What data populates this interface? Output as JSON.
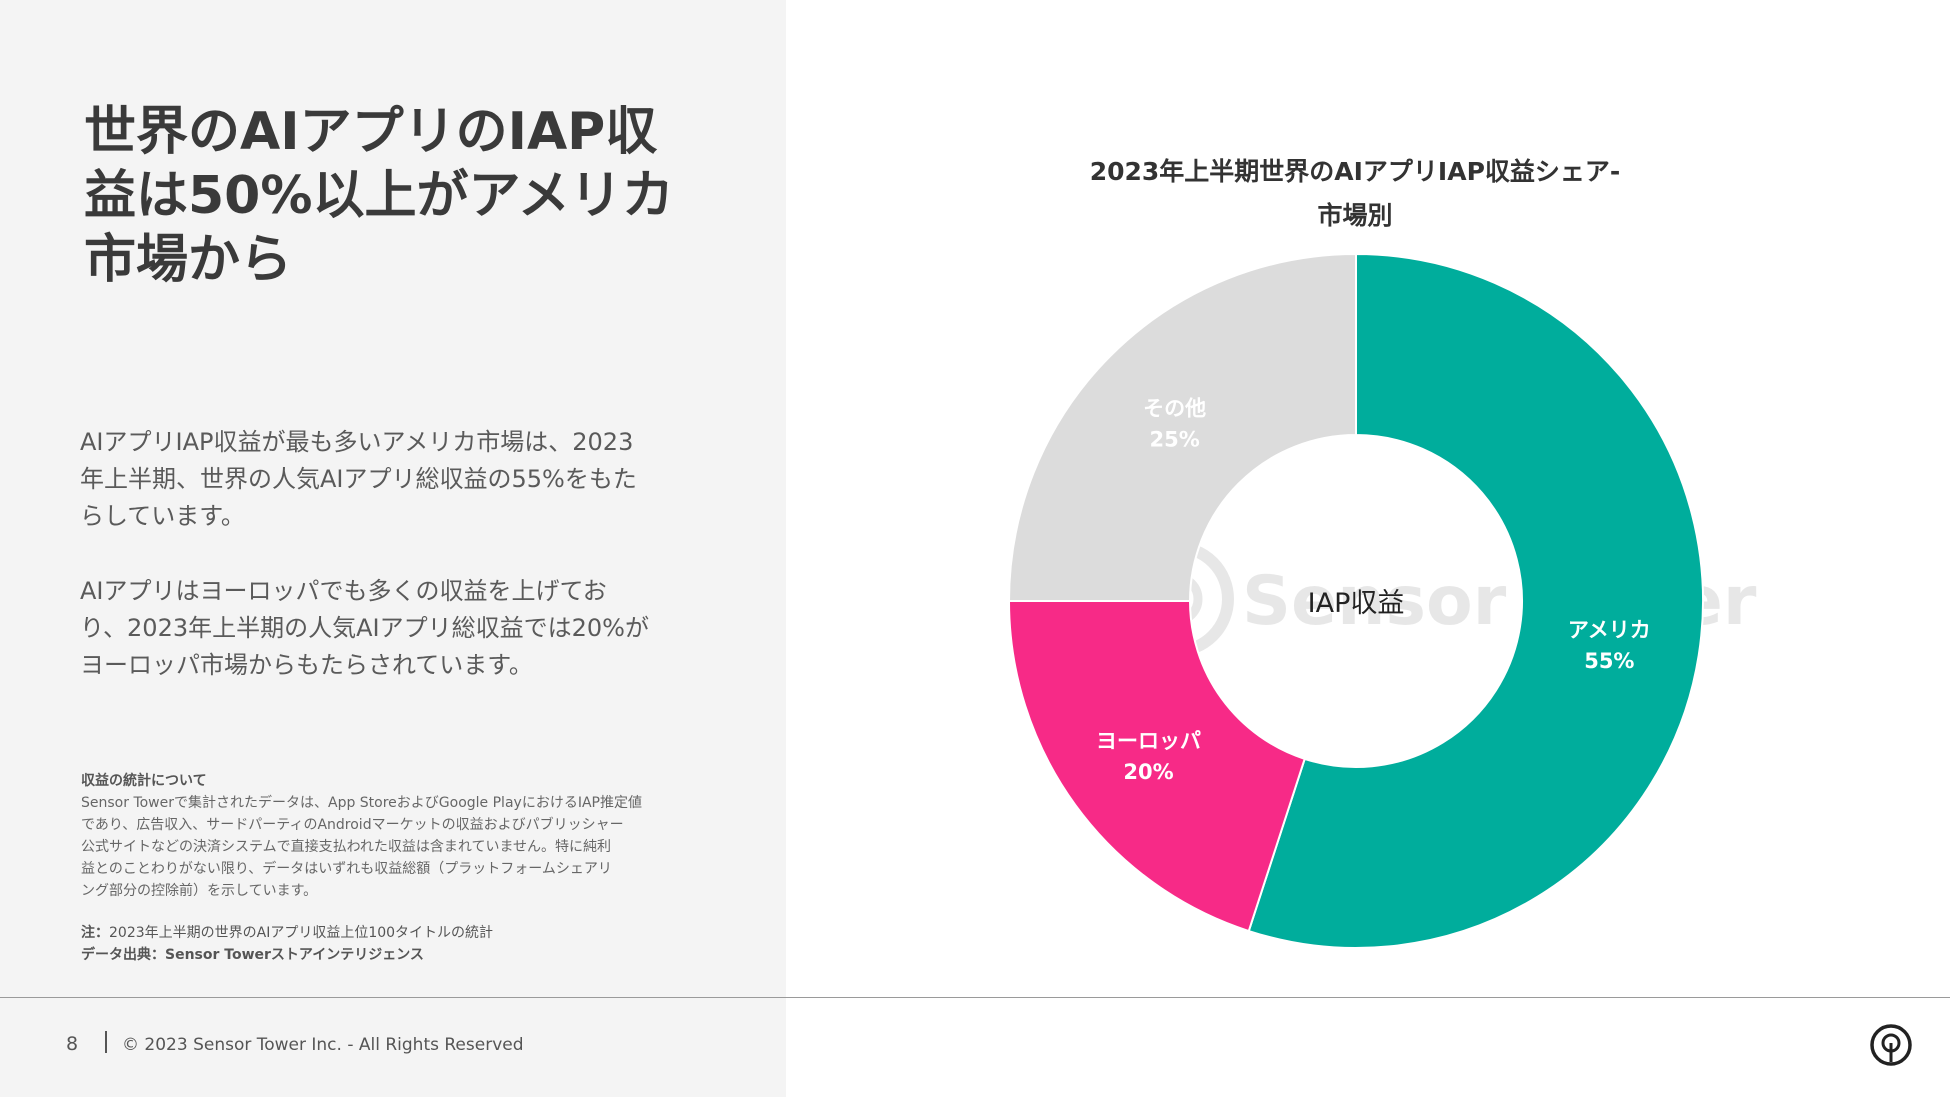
{
  "headline": [
    "世界のAIアプリのIAP収",
    "益は50%以上がアメリカ",
    "市場から"
  ],
  "body": {
    "para1": [
      "AIアプリIAP収益が最も多いアメリカ市場は、2023",
      "年上半期、世界の人気AIアプリ総収益の55%をもた",
      "らしています。"
    ],
    "para2": [
      "AIアプリはヨーロッパでも多くの収益を上げてお",
      "り、2023年上半期の人気AIアプリ総収益では20%が",
      "ヨーロッパ市場からもたらされています。"
    ]
  },
  "notes": {
    "title": "収益の統計について",
    "lines": [
      "Sensor Towerで集計されたデータは、App StoreおよびGoogle PlayにおけるIAP推定値",
      "であり、広告収入、サードパーティのAndroidマーケットの収益およびパブリッシャー",
      "公式サイトなどの決済システムで直接支払われた収益は含まれていません。特に純利",
      "益とのことわりがない限り、データはいずれも収益総額（プラットフォームシェアリ",
      "ング部分の控除前）を示しています。"
    ],
    "note_label": "注：",
    "note_text": "2023年上半期の世界のAIアプリ収益上位100タイトルの統計",
    "source_label": "データ出典：",
    "source_text": "Sensor Towerストアインテリジェンス"
  },
  "footer": {
    "page_number": "8",
    "copyright": "© 2023 Sensor Tower Inc. - All Rights Reserved"
  },
  "watermark": "Sensor Tower",
  "chart_data": {
    "type": "pie",
    "title": [
      "2023年上半期世界のAIアプリIAP収益シェア-",
      "市場別"
    ],
    "center_label": "IAP収益",
    "slices": [
      {
        "label": "アメリカ",
        "value": 55,
        "display": "55%",
        "color": "#00ad9c"
      },
      {
        "label": "ヨーロッパ",
        "value": 20,
        "display": "20%",
        "color": "#f72a87"
      },
      {
        "label": "その他",
        "value": 25,
        "display": "25%",
        "color": "#dcdcdc"
      }
    ]
  },
  "colors": {
    "left_panel_bg": "#f4f4f4",
    "headline": "#3a3a3a",
    "body_text": "#5a5a5a"
  }
}
